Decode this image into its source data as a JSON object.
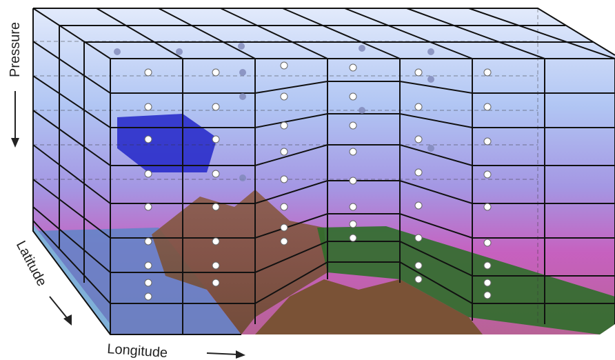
{
  "labels": {
    "pressure": "Pressure",
    "latitude": "Latitude",
    "longitude": "Longitude"
  }
}
